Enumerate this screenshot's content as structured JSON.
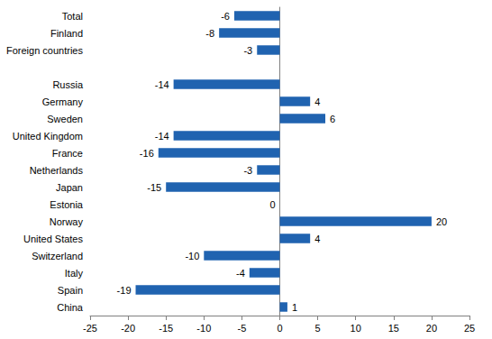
{
  "chart_data": {
    "type": "bar",
    "orientation": "horizontal",
    "categories": [
      "Total",
      "Finland",
      "Foreign countries",
      null,
      "Russia",
      "Germany",
      "Sweden",
      "United Kingdom",
      "France",
      "Netherlands",
      "Japan",
      "Estonia",
      "Norway",
      "United States",
      "Switzerland",
      "Italy",
      "Spain",
      "China"
    ],
    "values": [
      -6,
      -8,
      -3,
      null,
      -14,
      4,
      6,
      -14,
      -16,
      -3,
      -15,
      0,
      20,
      4,
      -10,
      -4,
      -19,
      1
    ],
    "color": "#2063b0",
    "xlim": [
      -25,
      25
    ],
    "xticks": [
      -25,
      -20,
      -15,
      -10,
      -5,
      0,
      5,
      10,
      15,
      20,
      25
    ],
    "grid": false,
    "data_labels": true
  }
}
